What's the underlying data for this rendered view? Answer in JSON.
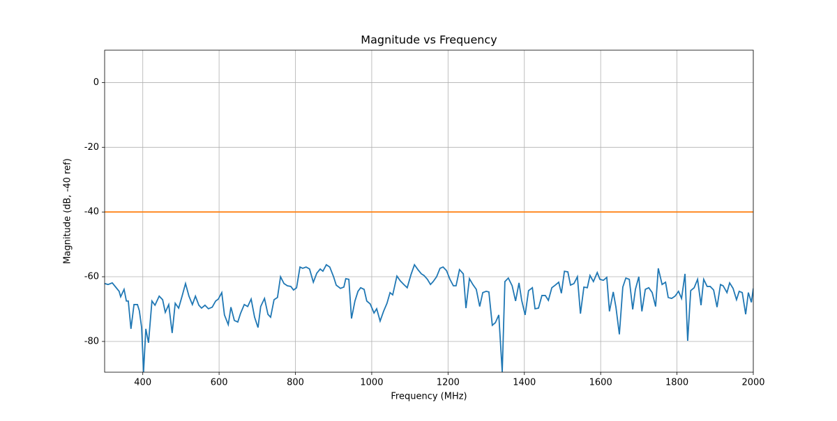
{
  "chart_data": {
    "type": "line",
    "title": "Magnitude vs Frequency",
    "xlabel": "Frequency (MHz)",
    "ylabel": "Magnitude (dB, -40 ref)",
    "xlim": [
      300,
      2000
    ],
    "xticks": [
      400,
      600,
      800,
      1000,
      1200,
      1400,
      1600,
      1800,
      2000
    ],
    "ylim": [
      -89.5,
      10
    ],
    "yticks": [
      -80,
      -60,
      -40,
      -20,
      0
    ],
    "grid": true,
    "series": [
      {
        "color": "#1f77b4",
        "x": [
          300,
          309,
          320,
          329,
          338,
          342,
          351,
          357,
          362,
          369,
          377,
          386,
          391,
          397,
          402,
          408,
          415,
          424,
          432,
          443,
          452,
          459,
          468,
          477,
          485,
          494,
          503,
          512,
          521,
          530,
          538,
          547,
          554,
          563,
          572,
          582,
          591,
          598,
          607,
          614,
          624,
          631,
          640,
          649,
          656,
          666,
          675,
          684,
          693,
          702,
          709,
          719,
          728,
          735,
          744,
          753,
          761,
          770,
          779,
          788,
          795,
          803,
          812,
          819,
          828,
          837,
          847,
          856,
          865,
          872,
          881,
          890,
          900,
          907,
          918,
          927,
          932,
          940,
          947,
          956,
          964,
          971,
          980,
          987,
          996,
          1006,
          1013,
          1022,
          1031,
          1040,
          1048,
          1055,
          1066,
          1075,
          1084,
          1093,
          1103,
          1112,
          1121,
          1130,
          1137,
          1146,
          1154,
          1161,
          1170,
          1179,
          1187,
          1196,
          1205,
          1214,
          1221,
          1230,
          1240,
          1247,
          1256,
          1265,
          1274,
          1283,
          1291,
          1300,
          1307,
          1316,
          1324,
          1333,
          1342,
          1349,
          1358,
          1368,
          1377,
          1386,
          1393,
          1402,
          1411,
          1421,
          1428,
          1437,
          1446,
          1455,
          1463,
          1472,
          1481,
          1490,
          1497,
          1505,
          1514,
          1521,
          1530,
          1539,
          1547,
          1556,
          1565,
          1572,
          1581,
          1591,
          1598,
          1607,
          1616,
          1623,
          1633,
          1640,
          1649,
          1658,
          1666,
          1675,
          1684,
          1691,
          1700,
          1708,
          1717,
          1726,
          1735,
          1744,
          1751,
          1761,
          1770,
          1777,
          1786,
          1795,
          1804,
          1812,
          1821,
          1828,
          1836,
          1845,
          1854,
          1863,
          1870,
          1879,
          1887,
          1896,
          1905,
          1914,
          1921,
          1931,
          1938,
          1947,
          1956,
          1963,
          1971,
          1980,
          1987,
          1995,
          2000
        ],
        "values": [
          -62.1,
          -62.4,
          -61.9,
          -63.2,
          -64.5,
          -66.2,
          -63.9,
          -67.5,
          -67.5,
          -76.1,
          -68.6,
          -68.6,
          -70.5,
          -75.7,
          -89.4,
          -76.1,
          -80.4,
          -67.5,
          -68.8,
          -66.0,
          -67.1,
          -71.0,
          -68.6,
          -77.4,
          -68.2,
          -69.7,
          -66.0,
          -62.1,
          -66.0,
          -68.6,
          -66.0,
          -68.8,
          -69.7,
          -68.8,
          -69.9,
          -69.4,
          -67.5,
          -66.9,
          -64.9,
          -71.8,
          -74.8,
          -69.4,
          -73.5,
          -74.0,
          -71.4,
          -68.6,
          -69.2,
          -66.9,
          -72.5,
          -75.7,
          -69.2,
          -66.7,
          -71.6,
          -72.5,
          -67.1,
          -66.4,
          -60.0,
          -62.1,
          -62.8,
          -63.0,
          -64.1,
          -63.4,
          -57.0,
          -57.4,
          -57.0,
          -57.6,
          -61.7,
          -58.9,
          -57.6,
          -58.3,
          -56.3,
          -57.0,
          -60.0,
          -62.6,
          -63.6,
          -63.2,
          -60.6,
          -60.8,
          -72.9,
          -67.5,
          -64.5,
          -63.4,
          -63.9,
          -67.5,
          -68.4,
          -71.2,
          -69.9,
          -73.7,
          -70.7,
          -68.2,
          -64.9,
          -65.6,
          -59.8,
          -61.3,
          -62.4,
          -63.4,
          -59.3,
          -56.3,
          -57.8,
          -59.1,
          -59.6,
          -60.8,
          -62.4,
          -61.5,
          -60.0,
          -57.4,
          -57.0,
          -58.1,
          -60.8,
          -62.8,
          -62.8,
          -57.8,
          -59.1,
          -69.7,
          -60.6,
          -62.4,
          -63.9,
          -69.2,
          -64.9,
          -64.5,
          -64.7,
          -75.0,
          -74.2,
          -71.8,
          -89.4,
          -61.5,
          -60.4,
          -62.8,
          -67.5,
          -61.9,
          -67.3,
          -71.8,
          -64.3,
          -63.4,
          -69.9,
          -69.7,
          -65.8,
          -65.8,
          -67.3,
          -63.4,
          -62.6,
          -61.7,
          -65.1,
          -58.3,
          -58.5,
          -62.6,
          -62.1,
          -60.0,
          -71.4,
          -63.2,
          -63.4,
          -59.6,
          -61.5,
          -58.7,
          -60.8,
          -61.1,
          -60.2,
          -70.7,
          -64.7,
          -69.4,
          -77.8,
          -63.2,
          -60.4,
          -60.8,
          -70.1,
          -63.9,
          -60.0,
          -70.7,
          -63.9,
          -63.4,
          -64.9,
          -69.2,
          -57.4,
          -62.4,
          -61.7,
          -66.4,
          -66.7,
          -66.0,
          -64.5,
          -66.7,
          -59.1,
          -79.8,
          -64.3,
          -63.4,
          -60.8,
          -68.8,
          -60.8,
          -63.0,
          -63.0,
          -64.1,
          -69.4,
          -62.4,
          -62.8,
          -64.9,
          -61.9,
          -63.6,
          -67.1,
          -64.5,
          -64.9,
          -71.6,
          -64.9,
          -67.9,
          -63.6
        ]
      },
      {
        "color": "#ff7f0e",
        "x": [
          300,
          2000
        ],
        "values": [
          -40,
          -40
        ]
      }
    ]
  }
}
